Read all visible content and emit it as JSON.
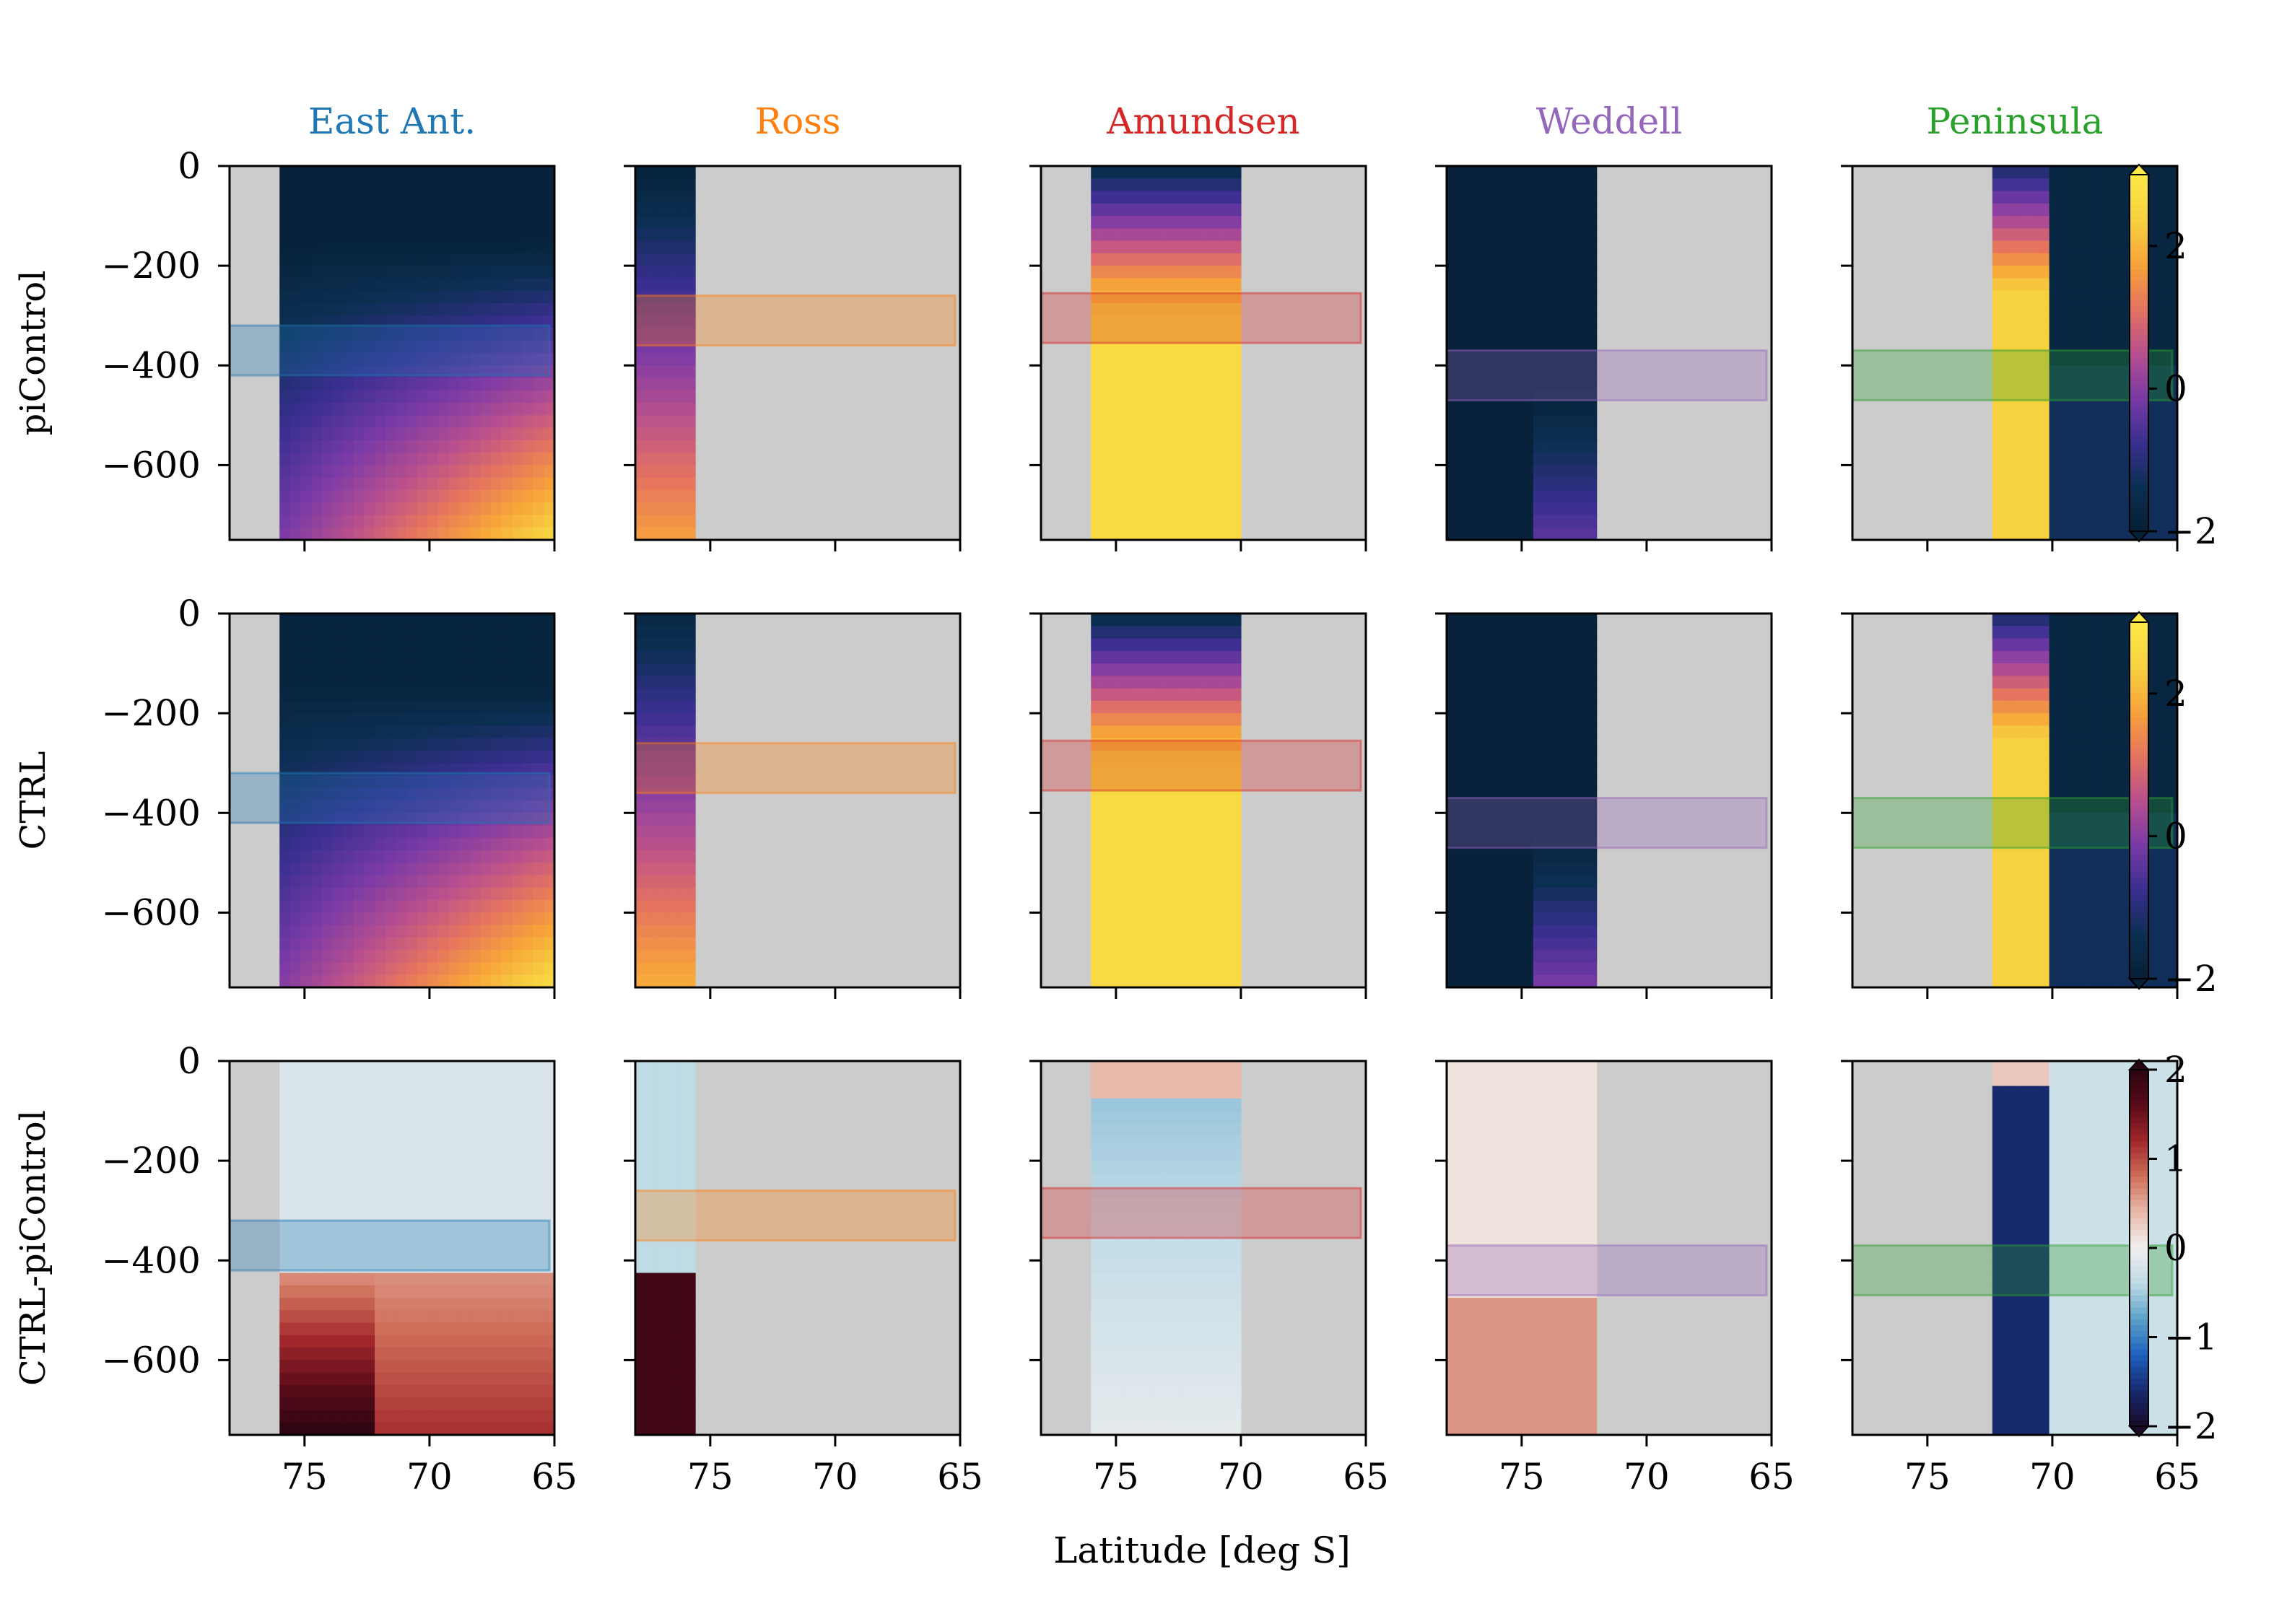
{
  "chart_data": {
    "type": "heatmap",
    "xlabel": "Latitude [deg S]",
    "xlim": [
      78,
      65
    ],
    "x_ticks": [
      "75",
      "70",
      "65"
    ],
    "ylim": [
      -750,
      0
    ],
    "y_ticks": [
      "0",
      "−200",
      "−400",
      "−600"
    ],
    "regions": [
      {
        "name": "East Ant.",
        "color": "#1f77b4",
        "band": [
          -320,
          -420
        ],
        "band_x": [
          78,
          65.2
        ],
        "data_lat": [
          76,
          65
        ],
        "ice_lat": [
          78,
          76
        ]
      },
      {
        "name": "Ross",
        "color": "#ff7f0e",
        "band": [
          -260,
          -360
        ],
        "band_x": [
          78,
          65.2
        ],
        "data_lat": [
          78,
          75.6
        ],
        "ice_lat": [
          78,
          78
        ]
      },
      {
        "name": "Amundsen",
        "color": "#d62728",
        "band": [
          -255,
          -355
        ],
        "band_x": [
          78,
          65.2
        ],
        "data_lat": [
          76,
          70
        ],
        "ice_lat": [
          78,
          76
        ]
      },
      {
        "name": "Weddell",
        "color": "#9467bd",
        "band": [
          -370,
          -470
        ],
        "band_x": [
          78,
          65.2
        ],
        "data_lat": [
          78,
          72
        ],
        "ice_lat": [
          78,
          78
        ]
      },
      {
        "name": "Peninsula",
        "color": "#2ca02c",
        "band": [
          -370,
          -470
        ],
        "band_x": [
          78,
          65.2
        ],
        "data_lat": [
          72.4,
          65
        ],
        "ice_lat": [
          78,
          72.4
        ]
      }
    ],
    "rows": [
      {
        "label": "piControl",
        "colormap": "thermal",
        "colorbar_ticks": [
          "2",
          "0",
          "−2"
        ],
        "cbar_range": [
          -2,
          3
        ]
      },
      {
        "label": "CTRL",
        "colormap": "thermal",
        "colorbar_ticks": [
          "2",
          "0",
          "−2"
        ],
        "cbar_range": [
          -2,
          3
        ]
      },
      {
        "label": "CTRL-piControl",
        "colormap": "balance",
        "colorbar_ticks": [
          "2",
          "1",
          "0",
          "−1",
          "−2"
        ],
        "cbar_range": [
          -2,
          2
        ]
      }
    ],
    "colors": {
      "land": "#cccccc",
      "thermal": [
        "#062036",
        "#0b2f52",
        "#3a2f91",
        "#7a3aa6",
        "#b84f8e",
        "#e5745f",
        "#f7a43a",
        "#f7d140",
        "#fde948"
      ],
      "balance": [
        "#1a0b29",
        "#172a6e",
        "#1e5fbf",
        "#5aa2c9",
        "#bfdbe6",
        "#f2efee",
        "#e8baaa",
        "#cf6f5a",
        "#a1262b",
        "#5a0b18",
        "#2b0411"
      ]
    }
  }
}
